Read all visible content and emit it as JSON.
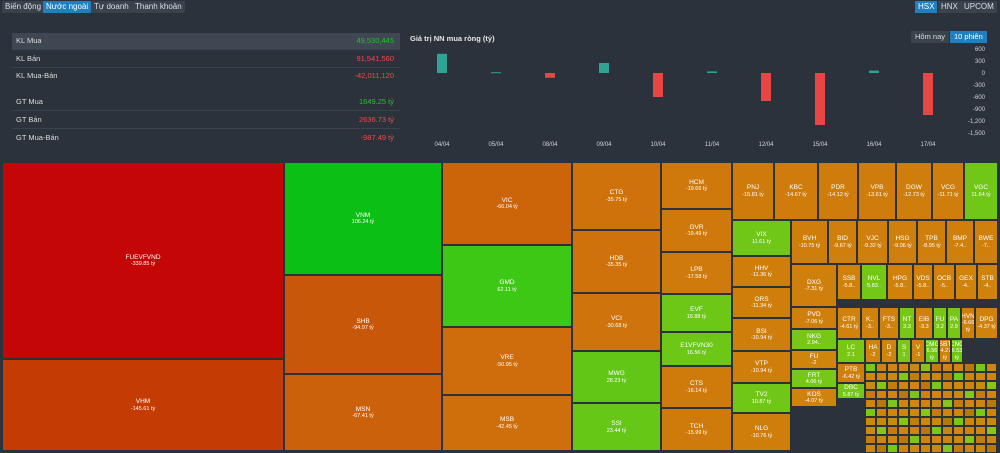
{
  "tabs": [
    "Biến động",
    "Nước ngoài",
    "Tự doanh",
    "Thanh khoản"
  ],
  "active_tab": 1,
  "exchanges": [
    "HSX",
    "HNX",
    "UPCOM"
  ],
  "active_exchange": 0,
  "stats": {
    "kl_mua": {
      "label": "KL Mua",
      "value": "49,530,445"
    },
    "kl_ban": {
      "label": "KL Bán",
      "value": "91,541,560"
    },
    "kl_net": {
      "label": "KL Mua-Bán",
      "value": "-42,011,120"
    },
    "gt_mua": {
      "label": "GT Mua",
      "value": "1649.25 tỷ"
    },
    "gt_ban": {
      "label": "GT Bán",
      "value": "2636.73 tỷ"
    },
    "gt_net": {
      "label": "GT Mua-Bán",
      "value": "-987.49 tỷ"
    }
  },
  "period_tabs": [
    "Hôm nay",
    "10 phiên"
  ],
  "active_period": 1,
  "colors": {
    "positive": "#2fa394",
    "negative": "#e84545",
    "up": "#21c521",
    "down": "#f14b4b"
  },
  "chart_data": {
    "type": "bar",
    "title": "Giá trị NN mua ròng (tỷ)",
    "categories": [
      "04/04",
      "05/04",
      "08/04",
      "09/04",
      "10/04",
      "11/04",
      "12/04",
      "15/04",
      "16/04",
      "17/04"
    ],
    "values": [
      480,
      20,
      -120,
      250,
      -600,
      40,
      -700,
      -1300,
      60,
      -1050
    ],
    "ylim": [
      -1500,
      600
    ],
    "yticks": [
      600,
      300,
      0,
      -300,
      -600,
      -900,
      -1200,
      -1500
    ],
    "ytick_labels": [
      "600",
      "300",
      "0",
      "-300",
      "-600",
      "-900",
      "-1,200",
      "-1,500"
    ]
  },
  "treemap": [
    {
      "s": "FUEVFVND",
      "v": "-339.85 tỷ",
      "c": "#c40606"
    },
    {
      "s": "VHM",
      "v": "-145.61 tỷ",
      "c": "#c43c03"
    },
    {
      "s": "VNM",
      "v": "106.24 tỷ",
      "c": "#0bbf14"
    },
    {
      "s": "SHB",
      "v": "-94.97 tỷ",
      "c": "#c9570a"
    },
    {
      "s": "MSN",
      "v": "-67.41 tỷ",
      "c": "#cc610b"
    },
    {
      "s": "VIC",
      "v": "-66.04 tỷ",
      "c": "#cc640a"
    },
    {
      "s": "GMD",
      "v": "62.11 tỷ",
      "c": "#3ec816"
    },
    {
      "s": "VRE",
      "v": "-50.95 tỷ",
      "c": "#cf6c0c"
    },
    {
      "s": "MSB",
      "v": "-42.45 tỷ",
      "c": "#cf6f0c"
    },
    {
      "s": "CTG",
      "v": "-35.75 tỷ",
      "c": "#cf720c"
    },
    {
      "s": "HDB",
      "v": "-35.35 tỷ",
      "c": "#cf720c"
    },
    {
      "s": "VCI",
      "v": "-30.68 tỷ",
      "c": "#cf740c"
    },
    {
      "s": "MWG",
      "v": "28.23 tỷ",
      "c": "#61c616"
    },
    {
      "s": "SSI",
      "v": "23.44 tỷ",
      "c": "#66c716"
    },
    {
      "s": "HCM",
      "v": "-19.66 tỷ",
      "c": "#cf790c"
    },
    {
      "s": "GVR",
      "v": "-19.49 tỷ",
      "c": "#cf790c"
    },
    {
      "s": "LPB",
      "v": "-17.58 tỷ",
      "c": "#cf7a0c"
    },
    {
      "s": "EVF",
      "v": "16.88 tỷ",
      "c": "#6cc716"
    },
    {
      "s": "E1VFVN30",
      "v": "16.56 tỷ",
      "c": "#6cc716"
    },
    {
      "s": "CTS",
      "v": "-16.14 tỷ",
      "c": "#cf7b0c"
    },
    {
      "s": "TCH",
      "v": "-15.99 tỷ",
      "c": "#cf7b0c"
    },
    {
      "s": "PNJ",
      "v": "-15.81 tỷ",
      "c": "#cf7b0c"
    },
    {
      "s": "KBC",
      "v": "-14.67 tỷ",
      "c": "#cf7c0c"
    },
    {
      "s": "PDR",
      "v": "-14.12 tỷ",
      "c": "#cf7c0c"
    },
    {
      "s": "VPB",
      "v": "-13.61 tỷ",
      "c": "#cf7c0c"
    },
    {
      "s": "DGW",
      "v": "-12.73 tỷ",
      "c": "#cf7d0c"
    },
    {
      "s": "VCG",
      "v": "-11.71 tỷ",
      "c": "#cf7d0c"
    },
    {
      "s": "VGC",
      "v": "11.64 tỷ",
      "c": "#70c716"
    },
    {
      "s": "VIX",
      "v": "11.61 tỷ",
      "c": "#70c716"
    },
    {
      "s": "HHV",
      "v": "-11.36 tỷ",
      "c": "#cf7e0c"
    },
    {
      "s": "ORS",
      "v": "-11.34 tỷ",
      "c": "#cf7e0c"
    },
    {
      "s": "BSI",
      "v": "-10.94 tỷ",
      "c": "#cf7e0c"
    },
    {
      "s": "VTP",
      "v": "-10.94 tỷ",
      "c": "#cf7e0c"
    },
    {
      "s": "TV2",
      "v": "10.87 tỷ",
      "c": "#70c716"
    },
    {
      "s": "NLG",
      "v": "-10.76 tỷ",
      "c": "#cf7e0c"
    },
    {
      "s": "BVH",
      "v": "-10.75 tỷ",
      "c": "#cf7e0c"
    },
    {
      "s": "BID",
      "v": "-9.67 tỷ",
      "c": "#cf7f0c"
    },
    {
      "s": "VJC",
      "v": "-9.32 tỷ",
      "c": "#cf7f0c"
    },
    {
      "s": "HSG",
      "v": "-9.06 tỷ",
      "c": "#cf7f0c"
    },
    {
      "s": "TPB",
      "v": "-8.95 tỷ",
      "c": "#cf7f0c"
    },
    {
      "s": "BMP",
      "v": "-7.4..",
      "c": "#cf800c"
    },
    {
      "s": "BWE",
      "v": "-7..",
      "c": "#cf800c"
    },
    {
      "s": "DXG",
      "v": "-7.31 tỷ",
      "c": "#cf800c"
    },
    {
      "s": "SSB",
      "v": "-5.8..",
      "c": "#cf810c"
    },
    {
      "s": "NVL",
      "v": "5.83..",
      "c": "#74c716"
    },
    {
      "s": "HPG",
      "v": "-5.8..",
      "c": "#cf810c"
    },
    {
      "s": "VDS",
      "v": "-5.8..",
      "c": "#cf810c"
    },
    {
      "s": "OCB",
      "v": "-5..",
      "c": "#cf810c"
    },
    {
      "s": "GEX",
      "v": "-4..",
      "c": "#cf820c"
    },
    {
      "s": "STB",
      "v": "-4..",
      "c": "#cf820c"
    },
    {
      "s": "PVD",
      "v": "-7.06 tỷ",
      "c": "#cf800c"
    },
    {
      "s": "CTR",
      "v": "-4.61 tỷ",
      "c": "#cf820c"
    },
    {
      "s": "K..",
      "v": "-3..",
      "c": "#cf830c"
    },
    {
      "s": "FTS",
      "v": "-3..",
      "c": "#cf830c"
    },
    {
      "s": "NT",
      "v": "3.3",
      "c": "#78c716"
    },
    {
      "s": "EIB",
      "v": "-3.3",
      "c": "#cf830c"
    },
    {
      "s": "FU",
      "v": "3.2",
      "c": "#78c716"
    },
    {
      "s": "PA",
      "v": "2.9",
      "c": "#78c716"
    },
    {
      "s": "HVN",
      "v": "-6.66 tỷ",
      "c": "#cf800c"
    },
    {
      "s": "DPG",
      "v": "-4.37 tỷ",
      "c": "#cf820c"
    },
    {
      "s": "NKG",
      "v": "2.94..",
      "c": "#78c716"
    },
    {
      "s": "FU",
      "v": "-2",
      "c": "#cf840c"
    },
    {
      "s": "LC",
      "v": "2.1",
      "c": "#7ac716"
    },
    {
      "s": "HA",
      "v": "-2",
      "c": "#cf840c"
    },
    {
      "s": "D",
      "v": "-2",
      "c": "#cf840c"
    },
    {
      "s": "S",
      "v": "1",
      "c": "#7ac716"
    },
    {
      "s": "V",
      "v": "-1",
      "c": "#cf840c"
    },
    {
      "s": "CMG",
      "v": "6.56 tỷ",
      "c": "#72c716"
    },
    {
      "s": "SBT",
      "v": "-4.27 tỷ",
      "c": "#cf820c"
    },
    {
      "s": "CNG",
      "v": "6.53 tỷ",
      "c": "#72c716"
    },
    {
      "s": "FRT",
      "v": "4.06 tỷ",
      "c": "#76c716"
    },
    {
      "s": "PTB",
      "v": "-6.42 tỷ",
      "c": "#cf800c"
    },
    {
      "s": "KOS",
      "v": "-4.07 tỷ",
      "c": "#cf820c"
    },
    {
      "s": "DBC",
      "v": "5.87 tỷ",
      "c": "#74c716"
    }
  ]
}
